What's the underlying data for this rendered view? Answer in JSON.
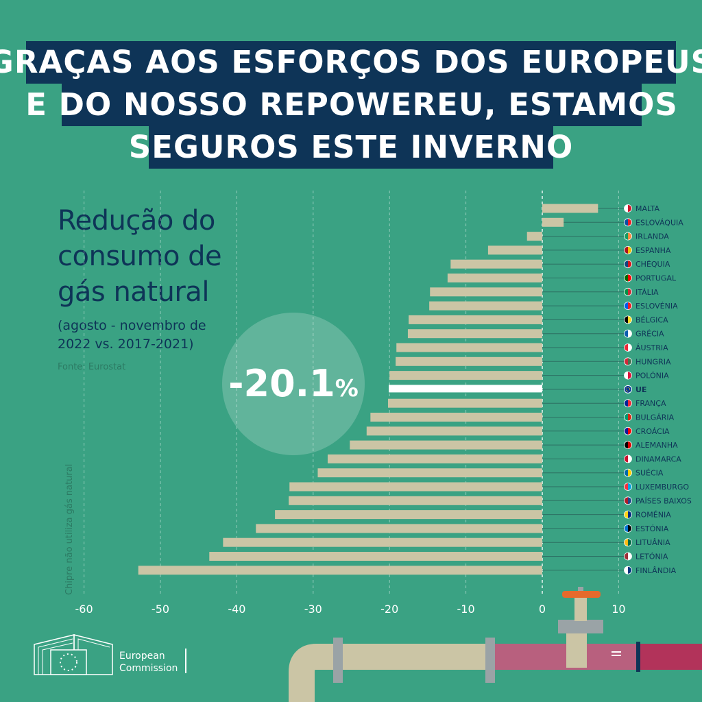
{
  "header": {
    "lines": [
      "GRAÇAS AOS ESFORÇOS DOS EUROPEUS",
      "E DO NOSSO REPOWEREU, ESTAMOS",
      "SEGUROS ESTE INVERNO"
    ]
  },
  "subtitle": {
    "lines": [
      "Redução do",
      "consumo de",
      "gás natural"
    ]
  },
  "period": {
    "lines": [
      "(agosto - novembro de",
      "2022 vs. 2017-2021)"
    ]
  },
  "source": "Fonte: Eurostat",
  "side_note": "Chipre não utiliza gás natural",
  "highlight": {
    "value": "-20.1",
    "unit": "%"
  },
  "logo": {
    "line1": "European",
    "line2": "Commission"
  },
  "colors": {
    "background": "#3aa283",
    "header_bg": "#0e3457",
    "bar": "#cbc5a5",
    "highlight_bar": "#ffffff",
    "pipe": "#cbc5a5",
    "pipe_red": "#b2335a",
    "valve": "#e66a2c"
  },
  "chart_data": {
    "type": "bar",
    "orientation": "horizontal",
    "categories": [
      "MALTA",
      "ESLOVÁQUIA",
      "IRLANDA",
      "ESPANHA",
      "CHÉQUIA",
      "PORTUGAL",
      "ITÁLIA",
      "ESLOVÉNIA",
      "BÉLGICA",
      "GRÉCIA",
      "ÁUSTRIA",
      "HUNGRIA",
      "POLÓNIA",
      "UE",
      "FRANÇA",
      "BULGÁRIA",
      "CROÁCIA",
      "ALEMANHA",
      "DINAMARCA",
      "SUÉCIA",
      "LUXEMBURGO",
      "PAÍSES BAIXOS",
      "ROMÉNIA",
      "ESTÓNIA",
      "LITUÂNIA",
      "LETÓNIA",
      "FINLÂNDIA"
    ],
    "values": [
      7.3,
      2.8,
      -2.0,
      -7.1,
      -12.0,
      -12.4,
      -14.7,
      -14.8,
      -17.5,
      -17.6,
      -19.1,
      -19.2,
      -20.0,
      -20.1,
      -20.2,
      -22.5,
      -23.0,
      -25.2,
      -28.1,
      -29.4,
      -33.1,
      -33.2,
      -35.0,
      -37.5,
      -41.8,
      -43.6,
      -52.9
    ],
    "highlight_category": "UE",
    "xlim": [
      -60,
      10
    ],
    "xticks": [
      "-60",
      "-50",
      "-40",
      "-30",
      "-20",
      "-10",
      "0",
      "10"
    ],
    "xtick_values": [
      -60,
      -50,
      -40,
      -30,
      -20,
      -10,
      0,
      10
    ],
    "flags": [
      [
        "#ffffff",
        "#cf142b"
      ],
      [
        "#0b4ea2",
        "#ee1c25"
      ],
      [
        "#169b62",
        "#ff883e"
      ],
      [
        "#aa151b",
        "#f1bf00"
      ],
      [
        "#11457e",
        "#d7141a"
      ],
      [
        "#006600",
        "#ff0000"
      ],
      [
        "#009246",
        "#ce2b37"
      ],
      [
        "#005ce6",
        "#ed1c24"
      ],
      [
        "#000000",
        "#fdda24"
      ],
      [
        "#0d5eaf",
        "#ffffff"
      ],
      [
        "#ed2939",
        "#ffffff"
      ],
      [
        "#ce2939",
        "#477050"
      ],
      [
        "#ffffff",
        "#dc143c"
      ],
      [
        "#003399",
        "#ffcc00"
      ],
      [
        "#002395",
        "#ed2939"
      ],
      [
        "#00966e",
        "#d62612"
      ],
      [
        "#171796",
        "#ff0000"
      ],
      [
        "#000000",
        "#dd0000"
      ],
      [
        "#c8102e",
        "#ffffff"
      ],
      [
        "#006aa7",
        "#fecc00"
      ],
      [
        "#ef3340",
        "#00a3e0"
      ],
      [
        "#ae1c28",
        "#21468b"
      ],
      [
        "#fcd116",
        "#002b7f"
      ],
      [
        "#0072ce",
        "#000000"
      ],
      [
        "#fdb913",
        "#006a44"
      ],
      [
        "#9e3039",
        "#ffffff"
      ],
      [
        "#ffffff",
        "#003580"
      ]
    ],
    "grid": true
  }
}
